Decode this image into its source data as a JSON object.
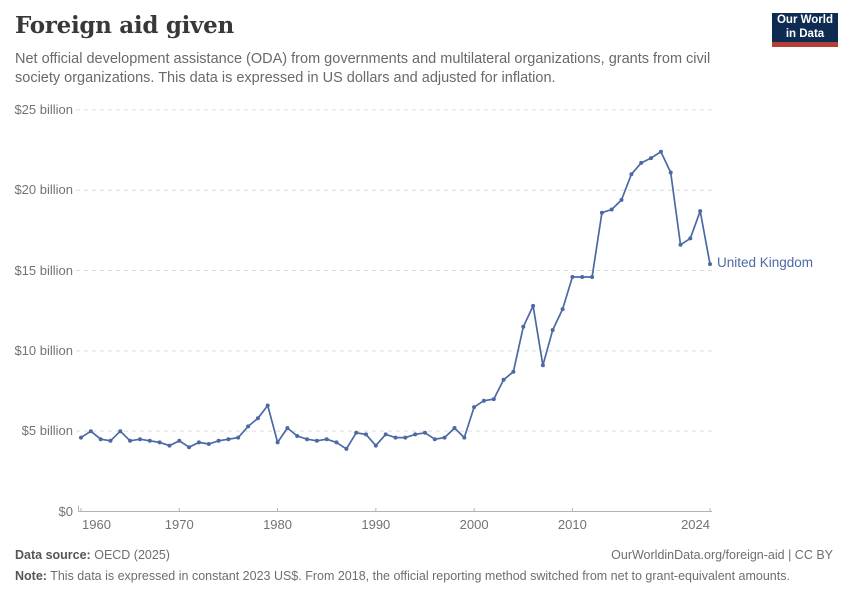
{
  "header": {
    "title": "Foreign aid given",
    "subtitle": "Net official development assistance (ODA) from governments and multilateral organizations, grants from civil society organizations. This data is expressed in US dollars and adjusted for inflation.",
    "logo": {
      "line1": "Our World",
      "line2": "in Data",
      "navy_color": "#0e2c52",
      "red_color": "#b23f38"
    }
  },
  "chart_data": {
    "type": "line",
    "title": "Foreign aid given",
    "entity": "United Kingdom",
    "unit": "constant 2023 US$, billions",
    "xlim": [
      1960,
      2024
    ],
    "ylim": [
      0,
      25
    ],
    "grid": "horizontal-dashed",
    "legend_position": "end-of-line-label",
    "y_ticks": [
      {
        "label": "$0",
        "value": 0
      },
      {
        "label": "$5 billion",
        "value": 5
      },
      {
        "label": "$10 billion",
        "value": 10
      },
      {
        "label": "$15 billion",
        "value": 15
      },
      {
        "label": "$20 billion",
        "value": 20
      },
      {
        "label": "$25 billion",
        "value": 25
      }
    ],
    "x_ticks": [
      {
        "label": "1960",
        "value": 1960
      },
      {
        "label": "1970",
        "value": 1970
      },
      {
        "label": "1980",
        "value": 1980
      },
      {
        "label": "1990",
        "value": 1990
      },
      {
        "label": "2000",
        "value": 2000
      },
      {
        "label": "2010",
        "value": 2010
      },
      {
        "label": "2024",
        "value": 2024
      }
    ],
    "x": [
      1960,
      1961,
      1962,
      1963,
      1964,
      1965,
      1966,
      1967,
      1968,
      1969,
      1970,
      1971,
      1972,
      1973,
      1974,
      1975,
      1976,
      1977,
      1978,
      1979,
      1980,
      1981,
      1982,
      1983,
      1984,
      1985,
      1986,
      1987,
      1988,
      1989,
      1990,
      1991,
      1992,
      1993,
      1994,
      1995,
      1996,
      1997,
      1998,
      1999,
      2000,
      2001,
      2002,
      2003,
      2004,
      2005,
      2006,
      2007,
      2008,
      2009,
      2010,
      2011,
      2012,
      2013,
      2014,
      2015,
      2016,
      2017,
      2018,
      2019,
      2020,
      2021,
      2022,
      2023,
      2024
    ],
    "series": [
      {
        "name": "United Kingdom",
        "color": "#4c69a4",
        "values": [
          4.6,
          5.0,
          4.5,
          4.4,
          5.0,
          4.4,
          4.5,
          4.4,
          4.3,
          4.1,
          4.4,
          4.0,
          4.3,
          4.2,
          4.4,
          4.5,
          4.6,
          5.3,
          5.8,
          6.6,
          4.3,
          5.2,
          4.7,
          4.5,
          4.4,
          4.5,
          4.3,
          3.9,
          4.9,
          4.8,
          4.1,
          4.8,
          4.6,
          4.6,
          4.8,
          4.9,
          4.5,
          4.6,
          5.2,
          4.6,
          6.5,
          6.9,
          7.0,
          8.2,
          8.7,
          11.5,
          12.8,
          9.1,
          11.3,
          12.6,
          14.6,
          14.6,
          14.6,
          18.6,
          18.8,
          19.4,
          21.0,
          21.7,
          22.0,
          22.4,
          21.1,
          16.6,
          17.0,
          18.7,
          15.4
        ]
      }
    ]
  },
  "footer": {
    "source_label": "Data source:",
    "source_value": "OECD (2025)",
    "link": "OurWorldinData.org/foreign-aid | CC BY",
    "note_label": "Note:",
    "note_text": "This data is expressed in constant 2023 US$. From 2018, the official reporting method switched from net to grant-equivalent amounts."
  }
}
